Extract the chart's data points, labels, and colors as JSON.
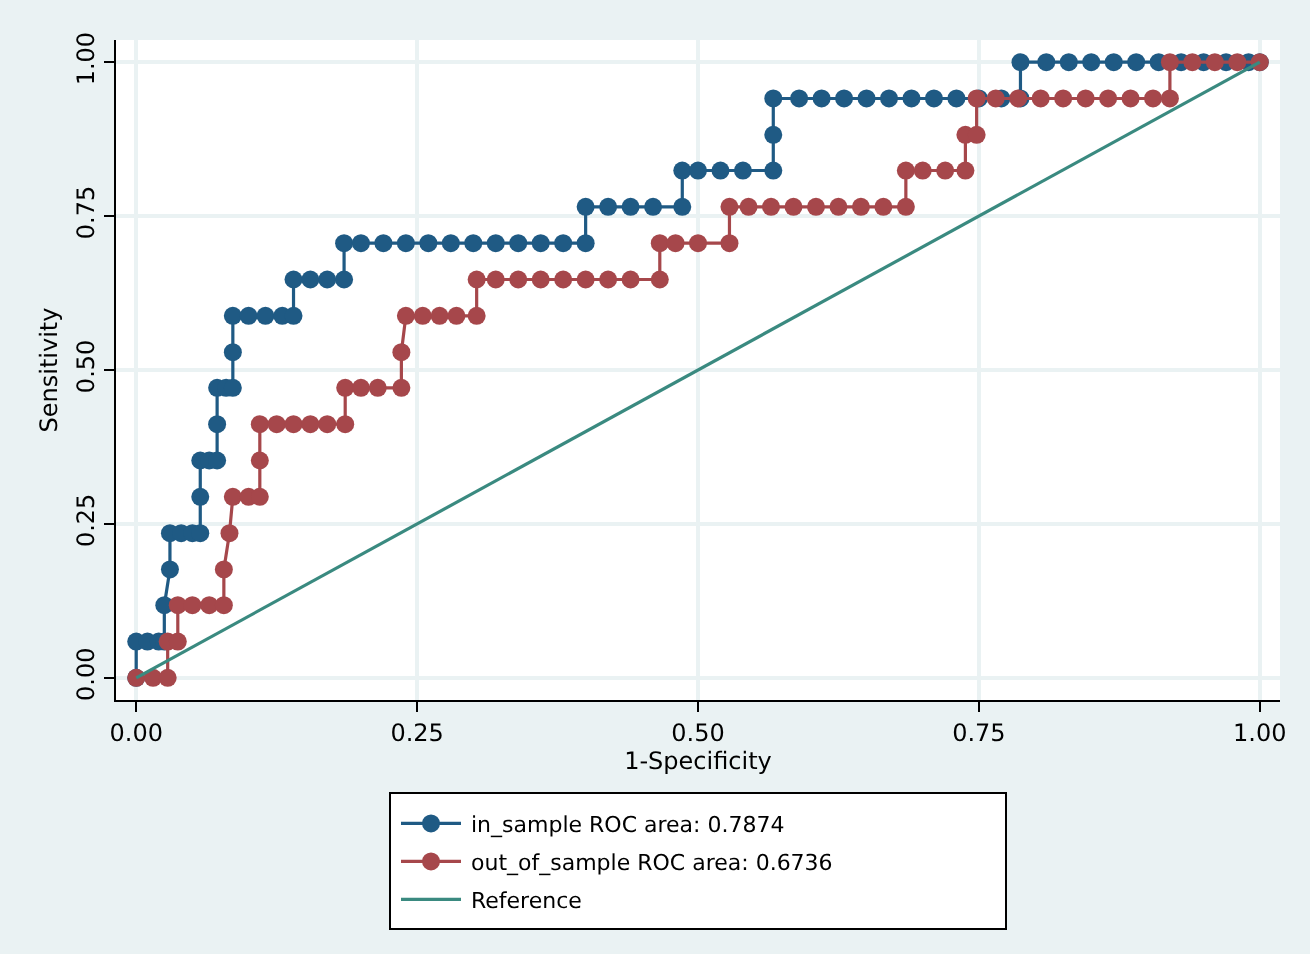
{
  "chart_data": {
    "type": "line",
    "xlabel": "1-Specificity",
    "ylabel": "Sensitivity",
    "xlim": [
      -0.018,
      1.018
    ],
    "ylim": [
      -0.036,
      1.036
    ],
    "xticks": [
      {
        "value": 0,
        "label": "0.00"
      },
      {
        "value": 0.25,
        "label": "0.25"
      },
      {
        "value": 0.5,
        "label": "0.50"
      },
      {
        "value": 0.75,
        "label": "0.75"
      },
      {
        "value": 1,
        "label": "1.00"
      }
    ],
    "yticks": [
      {
        "value": 0,
        "label": "0.00"
      },
      {
        "value": 0.25,
        "label": "0.25"
      },
      {
        "value": 0.5,
        "label": "0.50"
      },
      {
        "value": 0.75,
        "label": "0.75"
      },
      {
        "value": 1,
        "label": "1.00"
      }
    ],
    "grid": true,
    "legend": "bottom",
    "series": [
      {
        "name": "in_sample ROC area: 0.7874",
        "color": "#1f5a84",
        "marker": "circle",
        "x": [
          0,
          0,
          0.01,
          0.02,
          0.025,
          0.025,
          0.03,
          0.03,
          0.04,
          0.05,
          0.057,
          0.057,
          0.057,
          0.065,
          0.072,
          0.072,
          0.072,
          0.08,
          0.086,
          0.086,
          0.086,
          0.1,
          0.115,
          0.13,
          0.14,
          0.14,
          0.155,
          0.17,
          0.185,
          0.185,
          0.2,
          0.22,
          0.24,
          0.26,
          0.28,
          0.3,
          0.32,
          0.34,
          0.36,
          0.38,
          0.4,
          0.4,
          0.42,
          0.44,
          0.46,
          0.486,
          0.486,
          0.5,
          0.52,
          0.54,
          0.567,
          0.567,
          0.567,
          0.59,
          0.61,
          0.63,
          0.65,
          0.67,
          0.69,
          0.71,
          0.73,
          0.75,
          0.77,
          0.787,
          0.787,
          0.81,
          0.83,
          0.85,
          0.87,
          0.89,
          0.91,
          0.93,
          0.95,
          0.97,
          0.99,
          1
        ],
        "values": [
          0,
          0.059,
          0.059,
          0.059,
          0.059,
          0.118,
          0.176,
          0.235,
          0.235,
          0.235,
          0.235,
          0.294,
          0.353,
          0.353,
          0.353,
          0.412,
          0.471,
          0.471,
          0.471,
          0.529,
          0.588,
          0.588,
          0.588,
          0.588,
          0.588,
          0.647,
          0.647,
          0.647,
          0.647,
          0.706,
          0.706,
          0.706,
          0.706,
          0.706,
          0.706,
          0.706,
          0.706,
          0.706,
          0.706,
          0.706,
          0.706,
          0.765,
          0.765,
          0.765,
          0.765,
          0.765,
          0.824,
          0.824,
          0.824,
          0.824,
          0.824,
          0.882,
          0.941,
          0.941,
          0.941,
          0.941,
          0.941,
          0.941,
          0.941,
          0.941,
          0.941,
          0.941,
          0.941,
          0.941,
          1,
          1,
          1,
          1,
          1,
          1,
          1,
          1,
          1,
          1,
          1,
          1
        ]
      },
      {
        "name": "out_of_sample ROC area: 0.6736",
        "color": "#a6474b",
        "marker": "circle",
        "x": [
          0,
          0.015,
          0.028,
          0.028,
          0.037,
          0.037,
          0.05,
          0.065,
          0.078,
          0.078,
          0.083,
          0.086,
          0.1,
          0.11,
          0.11,
          0.11,
          0.125,
          0.14,
          0.155,
          0.17,
          0.186,
          0.186,
          0.2,
          0.215,
          0.236,
          0.236,
          0.24,
          0.255,
          0.27,
          0.285,
          0.303,
          0.303,
          0.32,
          0.34,
          0.36,
          0.38,
          0.4,
          0.42,
          0.44,
          0.466,
          0.466,
          0.48,
          0.5,
          0.528,
          0.528,
          0.545,
          0.565,
          0.585,
          0.605,
          0.625,
          0.645,
          0.665,
          0.685,
          0.685,
          0.7,
          0.72,
          0.738,
          0.738,
          0.748,
          0.748,
          0.765,
          0.785,
          0.805,
          0.825,
          0.845,
          0.865,
          0.885,
          0.905,
          0.92,
          0.92,
          0.94,
          0.96,
          0.98,
          1
        ],
        "values": [
          0,
          0,
          0,
          0.059,
          0.059,
          0.118,
          0.118,
          0.118,
          0.118,
          0.176,
          0.235,
          0.294,
          0.294,
          0.294,
          0.353,
          0.412,
          0.412,
          0.412,
          0.412,
          0.412,
          0.412,
          0.471,
          0.471,
          0.471,
          0.471,
          0.529,
          0.588,
          0.588,
          0.588,
          0.588,
          0.588,
          0.647,
          0.647,
          0.647,
          0.647,
          0.647,
          0.647,
          0.647,
          0.647,
          0.647,
          0.706,
          0.706,
          0.706,
          0.706,
          0.765,
          0.765,
          0.765,
          0.765,
          0.765,
          0.765,
          0.765,
          0.765,
          0.765,
          0.824,
          0.824,
          0.824,
          0.824,
          0.882,
          0.882,
          0.941,
          0.941,
          0.941,
          0.941,
          0.941,
          0.941,
          0.941,
          0.941,
          0.941,
          0.941,
          1,
          1,
          1,
          1,
          1
        ]
      },
      {
        "name": "Reference",
        "color": "#3a8a80",
        "marker": "none",
        "x": [
          0,
          1
        ],
        "values": [
          0,
          1
        ]
      }
    ]
  }
}
